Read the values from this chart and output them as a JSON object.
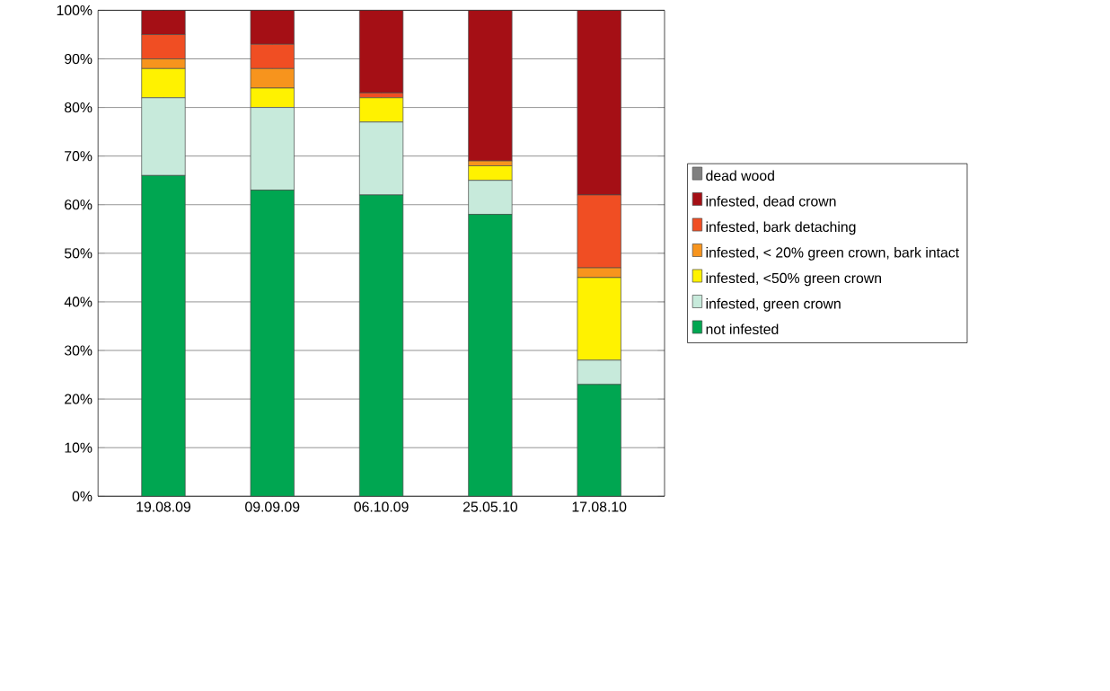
{
  "chart_data": {
    "type": "bar",
    "stacked": true,
    "categories": [
      "19.08.09",
      "09.09.09",
      "06.10.09",
      "25.05.10",
      "17.08.10"
    ],
    "series": [
      {
        "name": "not infested",
        "color": "#00a651",
        "values": [
          66,
          63,
          62,
          58,
          23
        ]
      },
      {
        "name": "infested, green crown",
        "color": "#c7eadb",
        "values": [
          16,
          17,
          15,
          7,
          5
        ]
      },
      {
        "name": "infested, <50% green crown",
        "color": "#fff200",
        "values": [
          6,
          4,
          5,
          3,
          17
        ]
      },
      {
        "name": "infested, < 20% green crown, bark intact",
        "color": "#f7941d",
        "values": [
          2,
          4,
          0,
          1,
          2
        ]
      },
      {
        "name": "infested, bark detaching",
        "color": "#f04e23",
        "values": [
          5,
          5,
          1,
          0,
          15
        ]
      },
      {
        "name": "infested, dead crown",
        "color": "#a50f15",
        "values": [
          5,
          7,
          17,
          31,
          38
        ]
      },
      {
        "name": "dead wood",
        "color": "#808080",
        "values": [
          0,
          0,
          0,
          0,
          0
        ]
      }
    ],
    "ylim": [
      0,
      100
    ],
    "yticks": [
      {
        "value": 0,
        "label": "0%"
      },
      {
        "value": 10,
        "label": "10%"
      },
      {
        "value": 20,
        "label": "20%"
      },
      {
        "value": 30,
        "label": "30%"
      },
      {
        "value": 40,
        "label": "40%"
      },
      {
        "value": 50,
        "label": "50%"
      },
      {
        "value": 60,
        "label": "60%"
      },
      {
        "value": 70,
        "label": "70%"
      },
      {
        "value": 80,
        "label": "80%"
      },
      {
        "value": 90,
        "label": "90%"
      },
      {
        "value": 100,
        "label": "100%"
      }
    ],
    "grid": true,
    "legend": "right"
  }
}
